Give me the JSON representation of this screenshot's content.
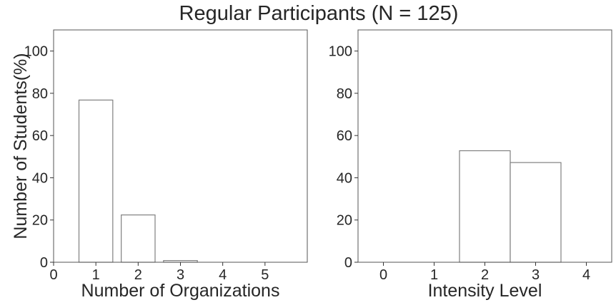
{
  "chart_data": {
    "title": "Regular Participants (N = 125)",
    "panels": [
      {
        "type": "bar",
        "xlabel": "Number of Organizations",
        "ylabel": "Number of Students(%)",
        "xlim": [
          0,
          6
        ],
        "ylim": [
          0,
          110
        ],
        "xticks": [
          0,
          1,
          2,
          3,
          4,
          5
        ],
        "yticks": [
          0,
          20,
          40,
          60,
          80,
          100
        ],
        "bar_width": 0.8,
        "x": [
          1,
          2,
          3,
          4,
          5
        ],
        "values": [
          76.8,
          22.4,
          0.8,
          0,
          0
        ]
      },
      {
        "type": "bar",
        "xlabel": "Intensity Level",
        "ylabel": "",
        "xlim": [
          -0.5,
          4.5
        ],
        "ylim": [
          0,
          110
        ],
        "xticks": [
          0,
          1,
          2,
          3,
          4
        ],
        "yticks": [
          0,
          20,
          40,
          60,
          80,
          100
        ],
        "bar_width": 1.0,
        "x": [
          2,
          3
        ],
        "values": [
          52.8,
          47.2
        ]
      }
    ]
  }
}
